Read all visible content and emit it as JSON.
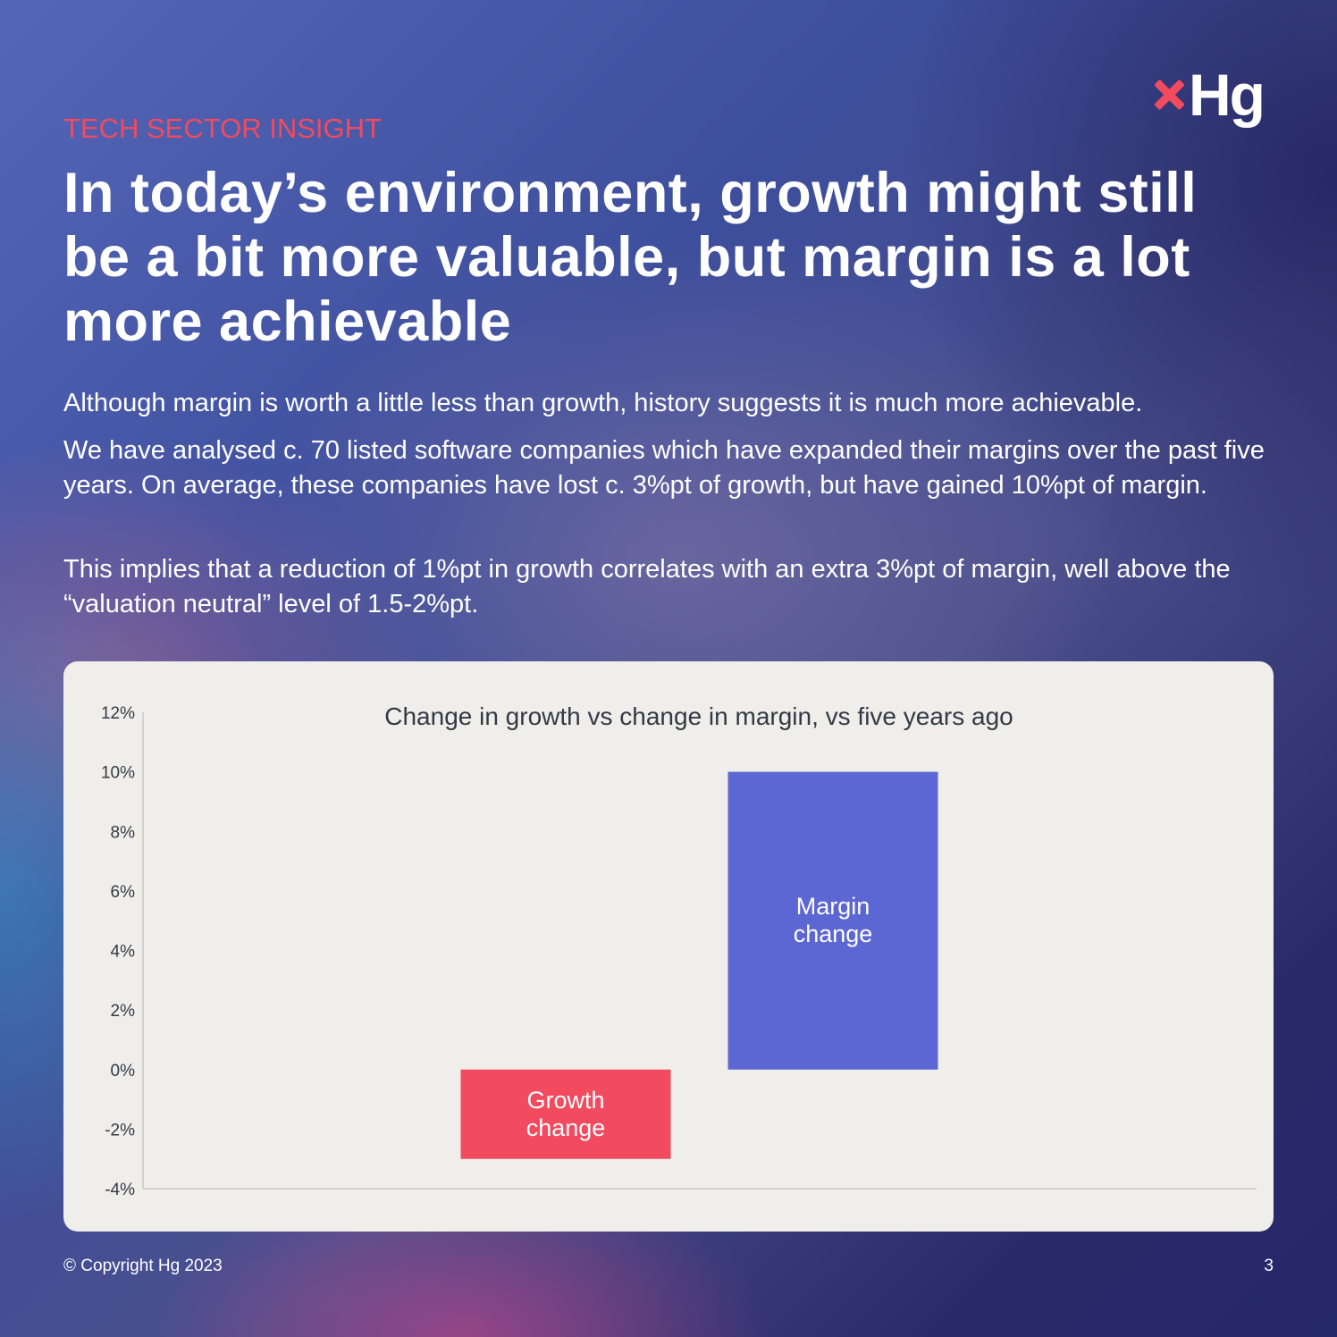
{
  "brand": {
    "logo_text": "Hg",
    "logo_mark_color": "#f24a5e"
  },
  "eyebrow": "TECH SECTOR INSIGHT",
  "headline": "In today’s environment, growth might still be a bit more valuable, but margin is a lot more achievable",
  "paragraphs": [
    "Although margin is worth a little less than growth, history suggests it is much more achievable.",
    "We have analysed c. 70 listed software companies which have expanded their margins over the past five years. On average, these companies have lost c. 3%pt of growth, but have gained 10%pt of margin.",
    "This implies that a reduction of 1%pt in growth correlates with an extra 3%pt of margin, well above the “valuation neutral” level of 1.5-2%pt."
  ],
  "chart_data": {
    "type": "bar",
    "title": "Change in growth vs change in margin, vs five years ago",
    "categories": [
      "Growth change",
      "Margin change"
    ],
    "category_display": [
      [
        "Growth",
        "change"
      ],
      [
        "Margin",
        "change"
      ]
    ],
    "values": [
      -3,
      10
    ],
    "colors": [
      "#f24a5e",
      "#5d67d4"
    ],
    "ylim": [
      -4,
      12
    ],
    "yticks": [
      12,
      10,
      8,
      6,
      4,
      2,
      0,
      -2,
      -4
    ],
    "ytick_labels": [
      "12%",
      "10%",
      "8%",
      "6%",
      "4%",
      "2%",
      "0%",
      "-2%",
      "-4%"
    ],
    "grid": false,
    "xlabel": "",
    "ylabel": ""
  },
  "footer": {
    "copyright": "© Copyright Hg 2023",
    "page_number": "3"
  }
}
